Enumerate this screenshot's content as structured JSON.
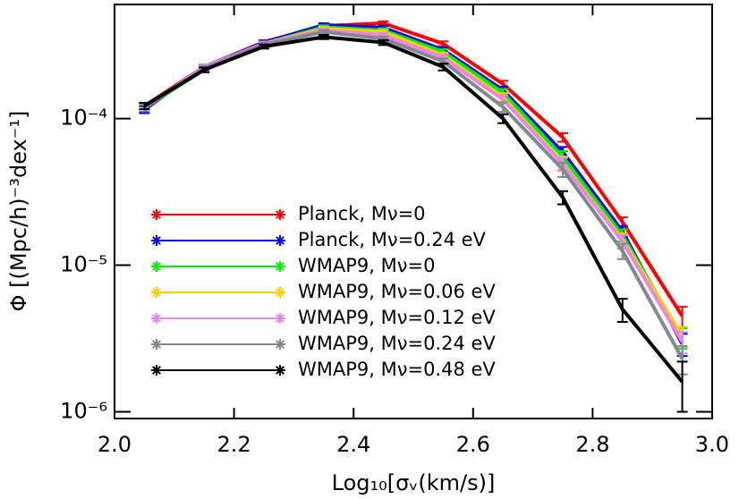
{
  "chart_data": {
    "type": "line",
    "log_y": true,
    "x_label": "Log₁₀[σᵥ(km/s)]",
    "y_label": "Φ [(Mpc/h)⁻³dex⁻¹]",
    "x": [
      2.05,
      2.15,
      2.25,
      2.35,
      2.45,
      2.55,
      2.65,
      2.75,
      2.85,
      2.95
    ],
    "xlim": [
      2.0,
      3.0
    ],
    "xticks": [
      {
        "value": 2.0,
        "label": "2.0"
      },
      {
        "value": 2.2,
        "label": "2.2"
      },
      {
        "value": 2.4,
        "label": "2.4"
      },
      {
        "value": 2.6,
        "label": "2.6"
      },
      {
        "value": 2.8,
        "label": "2.8"
      },
      {
        "value": 3.0,
        "label": "3.0"
      }
    ],
    "ylim": [
      9e-07,
      0.0006
    ],
    "yticks": [
      {
        "value": 1e-06,
        "label": "10⁻⁶"
      },
      {
        "value": 1e-05,
        "label": "10⁻⁵"
      },
      {
        "value": 0.0001,
        "label": "10⁻⁴"
      }
    ],
    "legend": "lower-left",
    "series": [
      {
        "name": "Planck, Mν=0",
        "color": "#ff0000",
        "values": [
          0.000122,
          0.000225,
          0.000333,
          0.000428,
          0.000447,
          0.000324,
          0.000172,
          7.45e-05,
          1.97e-05,
          4.5e-06
        ],
        "errors": [
          6e-06,
          8e-06,
          1e-05,
          1.2e-05,
          1.3e-05,
          1.2e-05,
          9e-06,
          5e-06,
          1.5e-06,
          7e-07
        ]
      },
      {
        "name": "Planck, Mν=0.24 eV",
        "color": "#0000ff",
        "values": [
          0.000115,
          0.000225,
          0.00033,
          0.000435,
          0.000416,
          0.000294,
          0.000156,
          5.9e-05,
          1.7e-05,
          2.9e-06
        ],
        "errors": [
          6e-06,
          8e-06,
          1e-05,
          1.2e-05,
          1.3e-05,
          1.2e-05,
          9e-06,
          5e-06,
          1.5e-06,
          5e-07
        ]
      },
      {
        "name": "WMAP9, Mν=0",
        "color": "#00ee00",
        "values": [
          0.000118,
          0.000215,
          0.000325,
          0.00042,
          0.0004,
          0.000285,
          0.00015,
          5.5e-05,
          1.6e-05,
          3.2e-06
        ],
        "errors": [
          6e-06,
          8e-06,
          1e-05,
          1.2e-05,
          1.3e-05,
          1.2e-05,
          9e-06,
          5e-06,
          1.5e-06,
          5e-07
        ]
      },
      {
        "name": "WMAP9, Mν=0.06 eV",
        "color": "#ffcc00",
        "values": [
          0.000118,
          0.00022,
          0.000325,
          0.00041,
          0.00039,
          0.00027,
          0.00014,
          5e-05,
          1.5e-05,
          3.3e-06
        ],
        "errors": [
          6e-06,
          8e-06,
          1e-05,
          1.2e-05,
          1.3e-05,
          1.2e-05,
          9e-06,
          5e-06,
          1.5e-06,
          5e-07
        ]
      },
      {
        "name": "WMAP9, Mν=0.12 eV",
        "color": "#ee82ee",
        "values": [
          0.000118,
          0.000225,
          0.000325,
          0.0004,
          0.00037,
          0.00026,
          0.000135,
          4.9e-05,
          1.45e-05,
          3e-06
        ],
        "errors": [
          6e-06,
          8e-06,
          1e-05,
          1.2e-05,
          1.3e-05,
          1.2e-05,
          9e-06,
          5e-06,
          1.5e-06,
          5e-07
        ]
      },
      {
        "name": "WMAP9, Mν=0.24 eV",
        "color": "#808890",
        "values": [
          0.000118,
          0.00022,
          0.00032,
          0.00039,
          0.00035,
          0.000245,
          0.00012,
          4.5e-05,
          1.25e-05,
          2.3e-06
        ],
        "errors": [
          6e-06,
          8e-06,
          1e-05,
          1.2e-05,
          1.3e-05,
          1.2e-05,
          9e-06,
          5e-06,
          1.5e-06,
          5e-07
        ]
      },
      {
        "name": "WMAP9, Mν=0.48 eV",
        "color": "#000000",
        "values": [
          0.000122,
          0.000215,
          0.00031,
          0.00036,
          0.00033,
          0.000225,
          0.0001,
          2.9e-05,
          5e-06,
          1.6e-06
        ],
        "errors": [
          6e-06,
          8e-06,
          1e-05,
          1.2e-05,
          1.3e-05,
          1.2e-05,
          7e-06,
          3e-06,
          9e-07,
          6e-07
        ]
      }
    ]
  }
}
